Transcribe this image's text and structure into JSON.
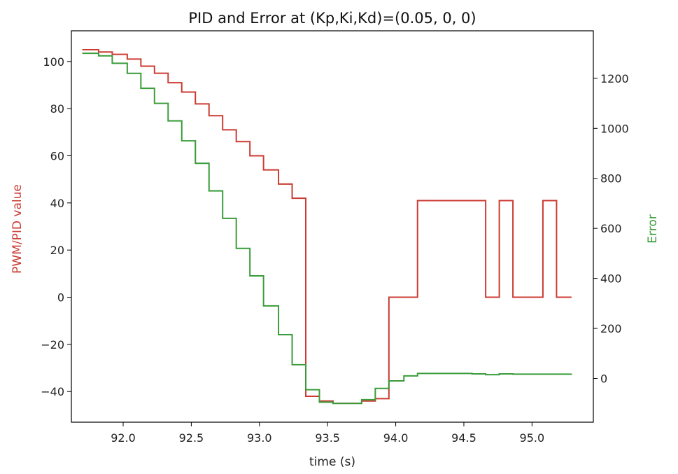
{
  "chart_data": {
    "type": "line",
    "title": "PID and Error at (Kp,Ki,Kd)=(0.05, 0, 0)",
    "xlabel": "time (s)",
    "ylabel_left": "PWM/PID value",
    "ylabel_right": "Error",
    "xlim": [
      91.62,
      95.45
    ],
    "ylim_left": [
      -53,
      113
    ],
    "ylim_right": [
      -175,
      1390
    ],
    "xticks": [
      92.0,
      92.5,
      93.0,
      93.5,
      94.0,
      94.5,
      95.0
    ],
    "xtick_labels": [
      "92.0",
      "92.5",
      "93.0",
      "93.5",
      "94.0",
      "94.5",
      "95.0"
    ],
    "yticks_left": [
      -40,
      -20,
      0,
      20,
      40,
      60,
      80,
      100
    ],
    "ytick_labels_left": [
      "−40",
      "−20",
      "0",
      "20",
      "40",
      "60",
      "80",
      "100"
    ],
    "yticks_right": [
      0,
      200,
      400,
      600,
      800,
      1000,
      1200
    ],
    "ytick_labels_right": [
      "0",
      "200",
      "400",
      "600",
      "800",
      "1000",
      "1200"
    ],
    "grid": false,
    "colors": {
      "pid": "#cc3b33",
      "error": "#3a9c3a",
      "axis_frame": "#000000"
    },
    "series": [
      {
        "axis": "left",
        "step": true,
        "x": [
          91.7,
          91.82,
          91.92,
          92.03,
          92.13,
          92.23,
          92.33,
          92.43,
          92.53,
          92.63,
          92.73,
          92.83,
          92.93,
          93.03,
          93.14,
          93.24,
          93.34,
          93.44,
          93.54,
          93.64,
          93.75,
          93.85,
          93.95,
          94.06,
          94.16,
          94.26,
          94.36,
          94.46,
          94.56,
          94.66,
          94.76,
          94.8,
          94.86,
          95.06,
          95.08,
          95.16,
          95.18,
          95.29
        ],
        "y": [
          105,
          104,
          103,
          101,
          98,
          95,
          91,
          87,
          82,
          77,
          71,
          66,
          60,
          54,
          48,
          42,
          -42,
          -44,
          -45,
          -45,
          -44,
          -43,
          0,
          0,
          41,
          41,
          41,
          41,
          41,
          0,
          41,
          41,
          0,
          0,
          41,
          41,
          0,
          0
        ]
      },
      {
        "axis": "right",
        "step": true,
        "x": [
          91.7,
          91.82,
          91.92,
          92.03,
          92.13,
          92.23,
          92.33,
          92.43,
          92.53,
          92.63,
          92.73,
          92.83,
          92.93,
          93.03,
          93.14,
          93.24,
          93.34,
          93.44,
          93.54,
          93.64,
          93.75,
          93.85,
          93.95,
          94.06,
          94.16,
          94.26,
          94.56,
          94.66,
          94.76,
          94.86,
          95.29
        ],
        "y": [
          1300,
          1290,
          1260,
          1220,
          1160,
          1100,
          1030,
          950,
          860,
          750,
          640,
          520,
          410,
          290,
          175,
          55,
          -45,
          -95,
          -100,
          -100,
          -85,
          -40,
          -10,
          10,
          20,
          20,
          18,
          15,
          18,
          17,
          18
        ]
      }
    ]
  }
}
